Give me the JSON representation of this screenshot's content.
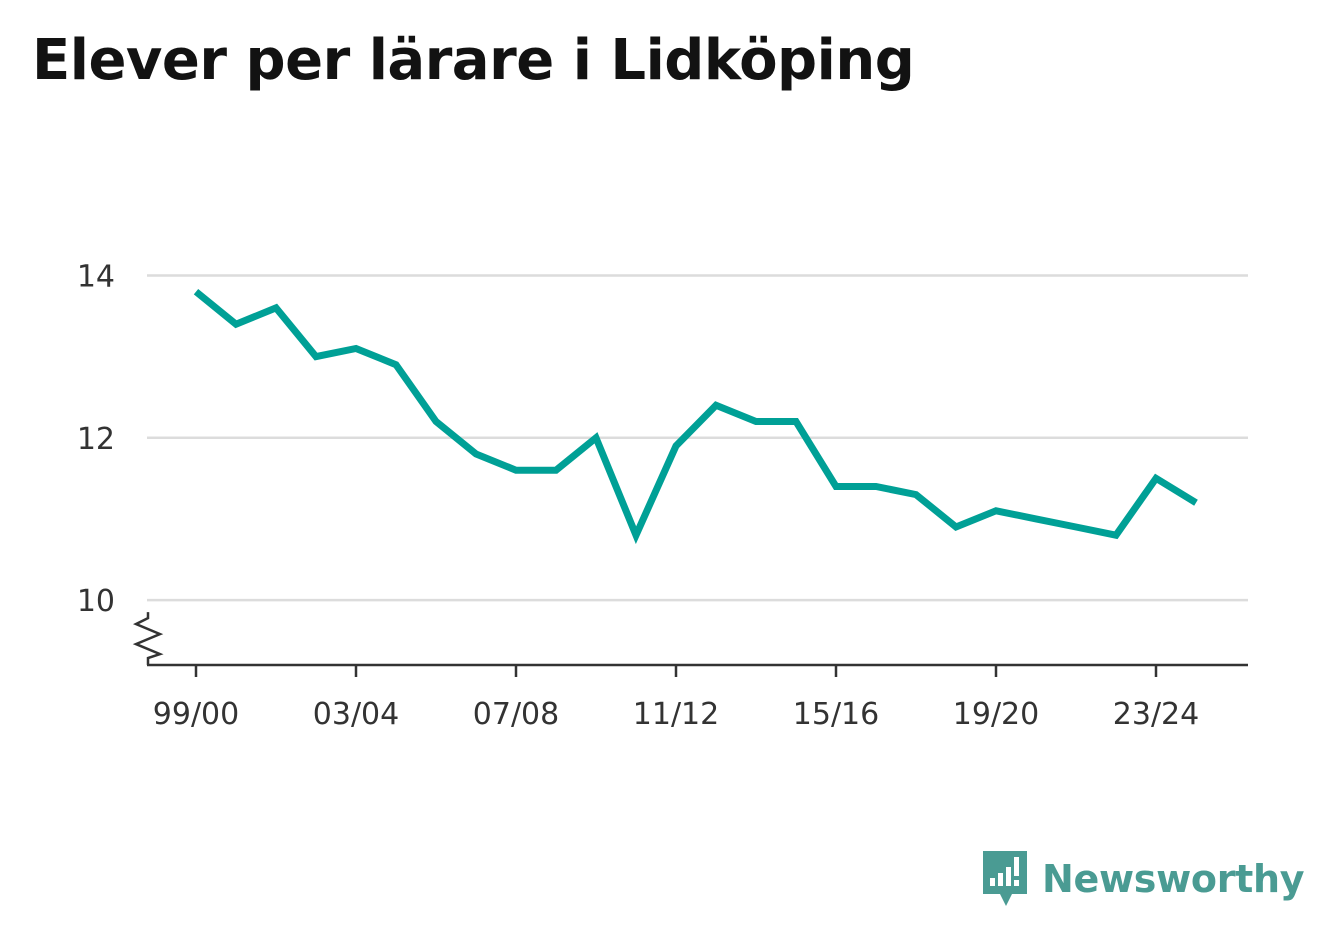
{
  "chart_data": {
    "type": "line",
    "title": "Elever per lärare i Lidköping",
    "xlabel": "",
    "ylabel": "",
    "x": [
      "99/00",
      "00/01",
      "01/02",
      "02/03",
      "03/04",
      "04/05",
      "05/06",
      "06/07",
      "07/08",
      "08/09",
      "09/10",
      "10/11",
      "11/12",
      "12/13",
      "13/14",
      "14/15",
      "15/16",
      "16/17",
      "17/18",
      "18/19",
      "19/20",
      "20/21",
      "21/22",
      "22/23",
      "23/24",
      "24/25"
    ],
    "x_tick_labels": [
      "99/00",
      "03/04",
      "07/08",
      "11/12",
      "15/16",
      "19/20",
      "23/24"
    ],
    "series": [
      {
        "values": [
          13.8,
          13.4,
          13.6,
          13.0,
          13.1,
          12.9,
          12.2,
          11.8,
          11.6,
          11.6,
          12.0,
          10.8,
          11.9,
          12.4,
          12.2,
          12.2,
          11.4,
          11.4,
          11.3,
          10.9,
          11.1,
          11.0,
          10.9,
          10.8,
          11.5,
          11.2
        ]
      }
    ],
    "y_ticks": [
      10,
      12,
      14
    ],
    "ylim": [
      9.2,
      14.4
    ],
    "y_axis_break": true,
    "grid": true,
    "line_color": "#00a096"
  },
  "branding": {
    "name": "Newsworthy",
    "color": "#4a9b93"
  }
}
